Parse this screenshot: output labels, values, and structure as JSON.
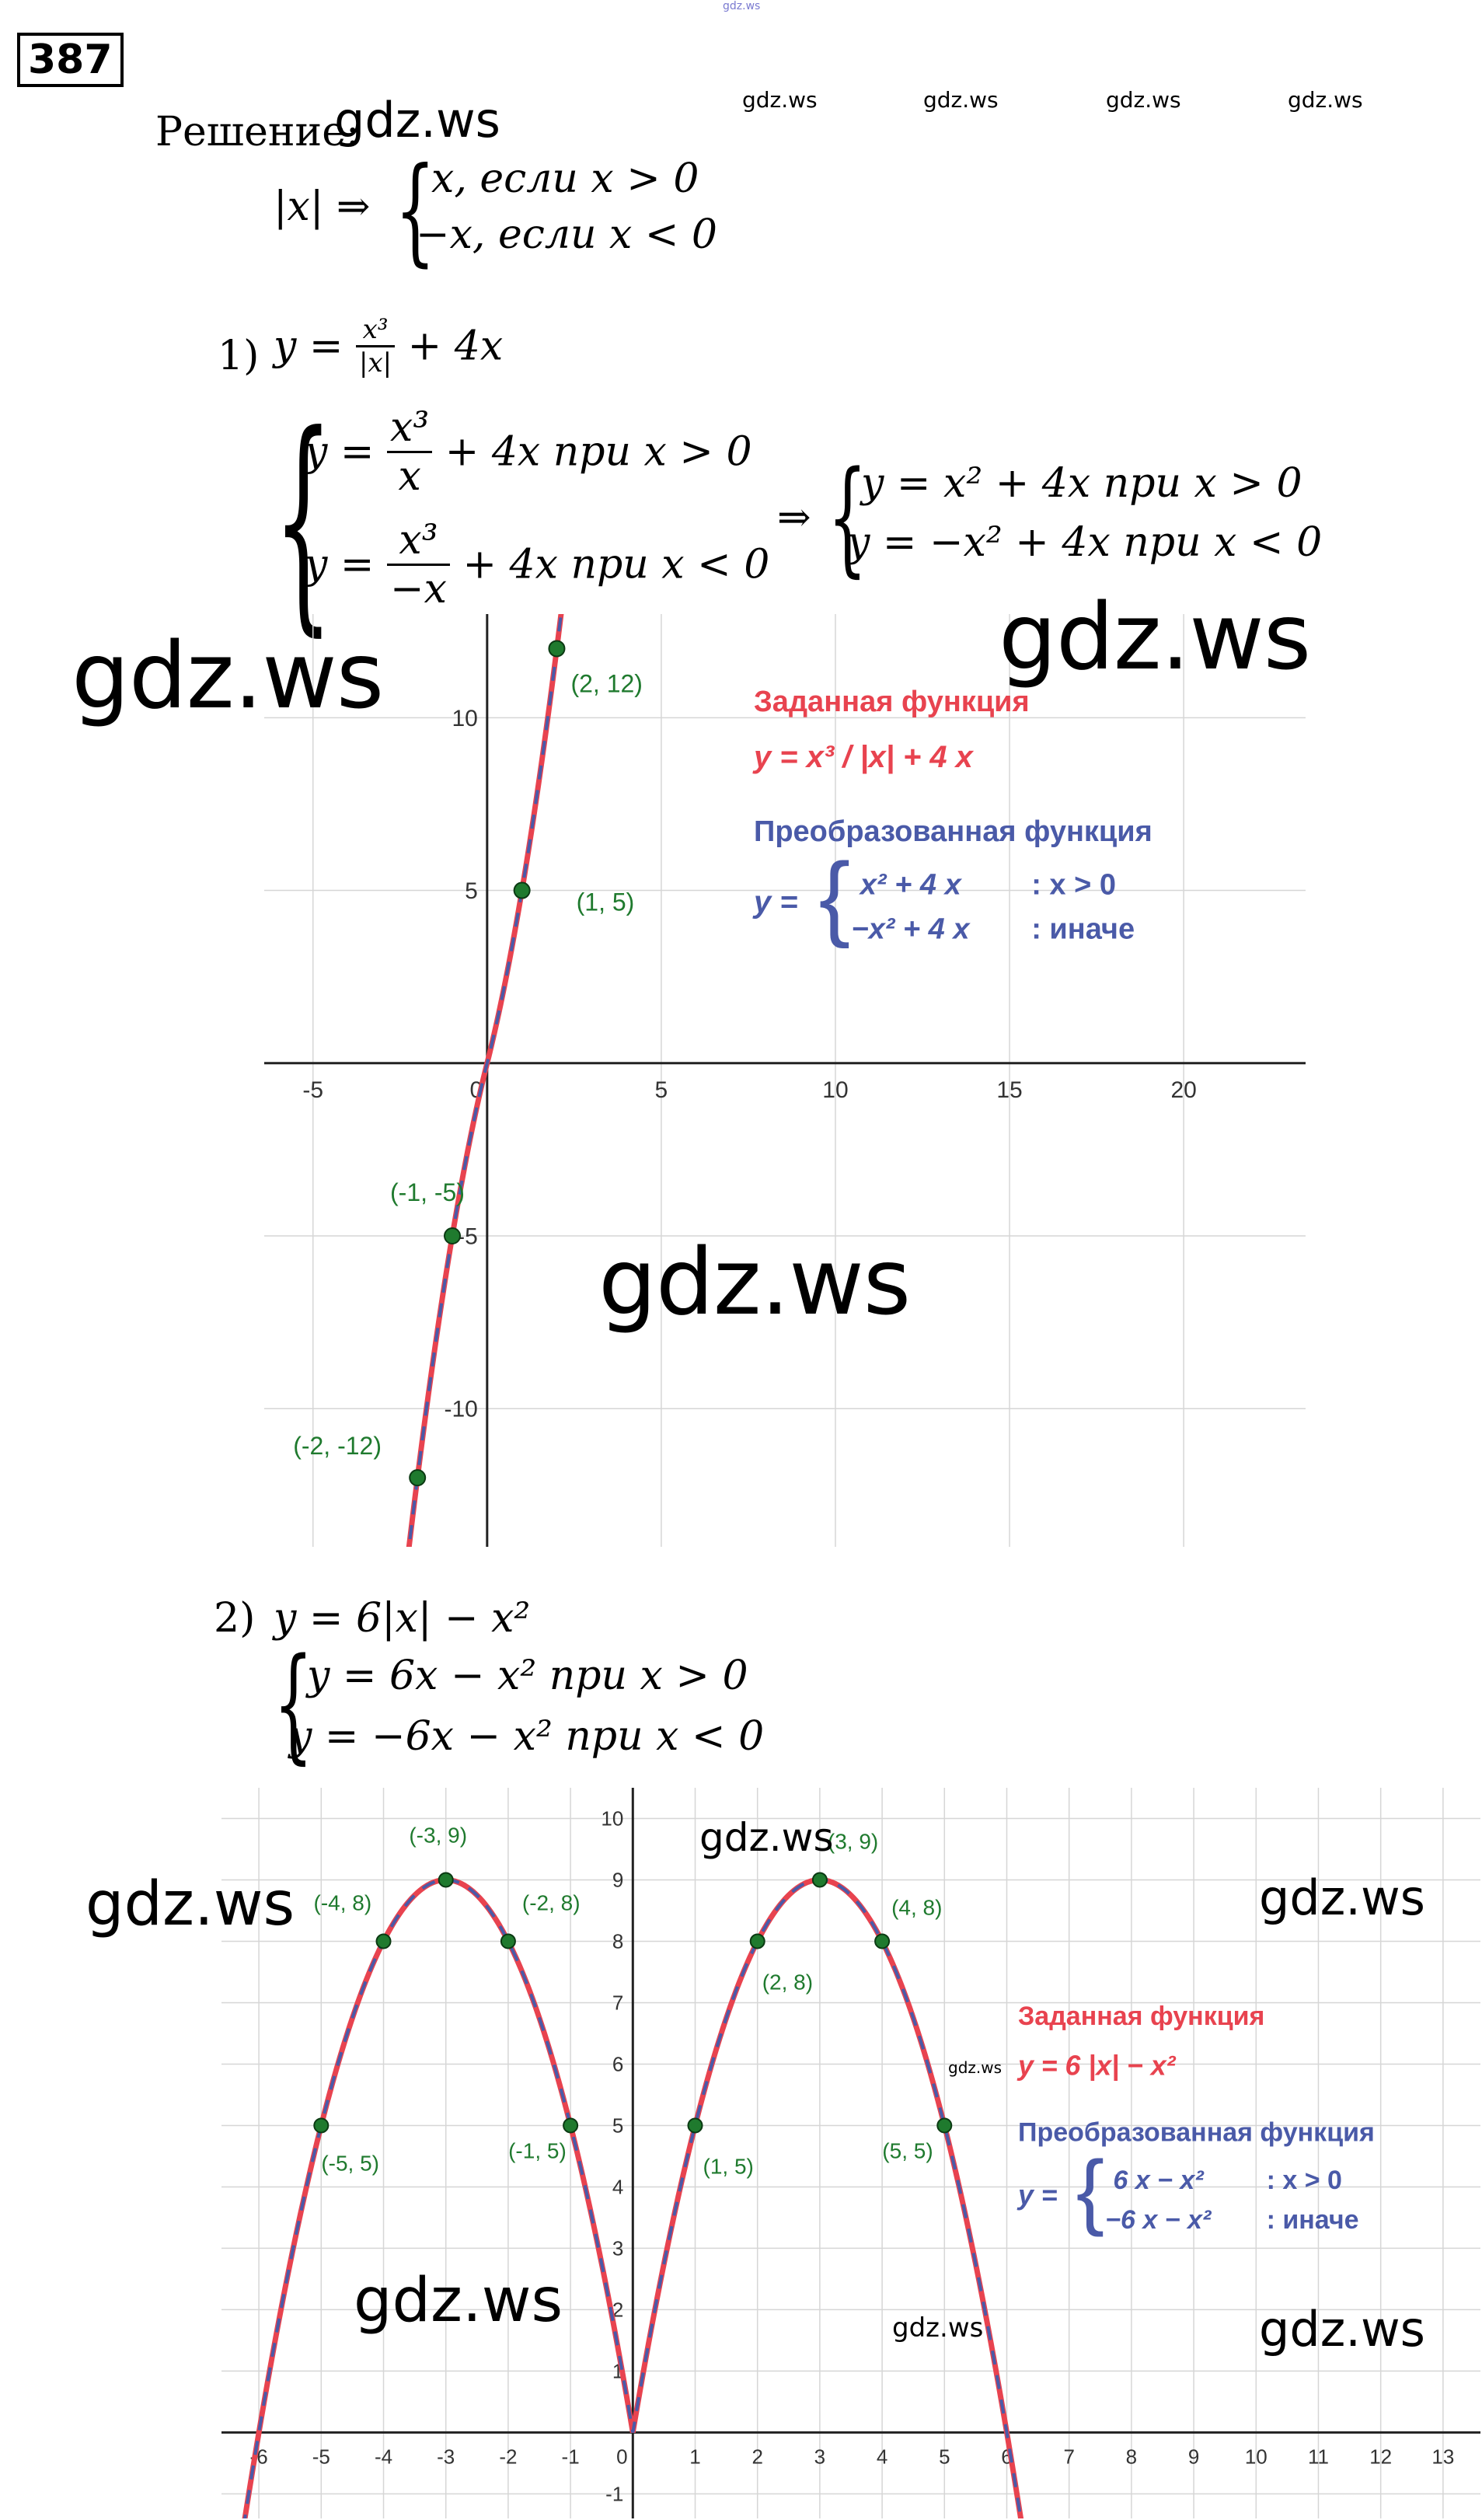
{
  "header": {
    "small_top": "gdz.ws",
    "task_number": "387"
  },
  "watermarks": [
    "gdz.ws",
    "gdz.ws",
    "gdz.ws",
    "gdz.ws",
    "gdz.ws",
    "gdz.ws",
    "gdz.ws",
    "gdz.ws",
    "gdz.ws",
    "gdz.ws",
    "gdz.ws",
    "gdz.ws",
    "gdz.ws",
    "gdz.ws",
    "gdz.ws",
    "gdz.ws"
  ],
  "solution": {
    "label": "Решение:",
    "abs_lhs": "|x| ⇒",
    "abs_case1": "x, если x > 0",
    "abs_case2": "−x, если x < 0"
  },
  "part1": {
    "label": "1)",
    "eq_lhs": "y =",
    "eq_num": "x³",
    "eq_den": "|x|",
    "eq_rest": "+ 4x",
    "sys1_lhs": "y =",
    "sys1_num": "x³",
    "sys1_den": "x",
    "sys1_rest": "+ 4x  при x > 0",
    "sys2_lhs": "y =",
    "sys2_num": "x³",
    "sys2_den": "−x",
    "sys2_rest": "+ 4x при x < 0",
    "arrow": "⇒",
    "res1": "y = x² + 4x при x > 0",
    "res2": "y = −x² + 4x при x < 0"
  },
  "part2": {
    "label": "2)",
    "eq": "y = 6|x| − x²",
    "sys1": "y = 6x − x² при x > 0",
    "sys2": "y = −6x − x² при x < 0"
  },
  "chart_data": [
    {
      "type": "line",
      "x_ticks": [
        "-5",
        "0",
        "5",
        "10",
        "15",
        "20"
      ],
      "y_ticks": [
        "10",
        "5",
        "-5",
        "-10"
      ],
      "xlim": [
        -6.4,
        23.5
      ],
      "ylim": [
        -14,
        13
      ],
      "grid": true,
      "points": [
        {
          "x": 2,
          "y": 12,
          "label": "(2, 12)"
        },
        {
          "x": 1,
          "y": 5,
          "label": "(1, 5)"
        },
        {
          "x": -1,
          "y": -5,
          "label": "(-1, -5)"
        },
        {
          "x": -2,
          "y": -12,
          "label": "(-2, -12)"
        }
      ],
      "legend": {
        "given_title": "Заданная функция",
        "given_formula": "y = x³ / |x| + 4 x",
        "transformed_title": "Преобразованная функция",
        "transformed_case1": "x² + 4 x",
        "transformed_cond1": ": x > 0",
        "transformed_case2": "−x² + 4 x",
        "transformed_cond2": ": иначе",
        "placement": "top-right"
      },
      "colors": {
        "given": "#e8434f",
        "transformed": "#4a5aa8",
        "points": "#1f7a2e",
        "labels": "#1f7a2e"
      }
    },
    {
      "type": "line",
      "x_ticks": [
        "-6",
        "-5",
        "-4",
        "-3",
        "-2",
        "-1",
        "0",
        "1",
        "2",
        "3",
        "4",
        "5",
        "6",
        "7",
        "8",
        "9",
        "10",
        "11",
        "12",
        "13"
      ],
      "y_ticks": [
        "10",
        "9",
        "8",
        "7",
        "6",
        "5",
        "4",
        "3",
        "2",
        "1",
        "-1"
      ],
      "xlim": [
        -6.6,
        13.6
      ],
      "ylim": [
        -1.4,
        10.5
      ],
      "grid": true,
      "points": [
        {
          "x": -3,
          "y": 9,
          "label": "(-3, 9)"
        },
        {
          "x": -4,
          "y": 8,
          "label": "(-4, 8)"
        },
        {
          "x": -2,
          "y": 8,
          "label": "(-2, 8)"
        },
        {
          "x": -5,
          "y": 5,
          "label": "(-5, 5)"
        },
        {
          "x": -1,
          "y": 5,
          "label": "(-1, 5)"
        },
        {
          "x": 3,
          "y": 9,
          "label": "(3, 9)"
        },
        {
          "x": 2,
          "y": 8,
          "label": "(2, 8)"
        },
        {
          "x": 4,
          "y": 8,
          "label": "(4, 8)"
        },
        {
          "x": 1,
          "y": 5,
          "label": "(1, 5)"
        },
        {
          "x": 5,
          "y": 5,
          "label": "(5, 5)"
        }
      ],
      "legend": {
        "given_title": "Заданная функция",
        "given_formula": "y = 6 |x| − x²",
        "transformed_title": "Преобразованная функция",
        "transformed_case1": "6 x − x²",
        "transformed_cond1": ": x > 0",
        "transformed_case2": "−6 x − x²",
        "transformed_cond2": ": иначе",
        "placement": "right"
      },
      "colors": {
        "given": "#e8434f",
        "transformed": "#4a5aa8",
        "points": "#1f7a2e",
        "labels": "#1f7a2e"
      }
    }
  ]
}
